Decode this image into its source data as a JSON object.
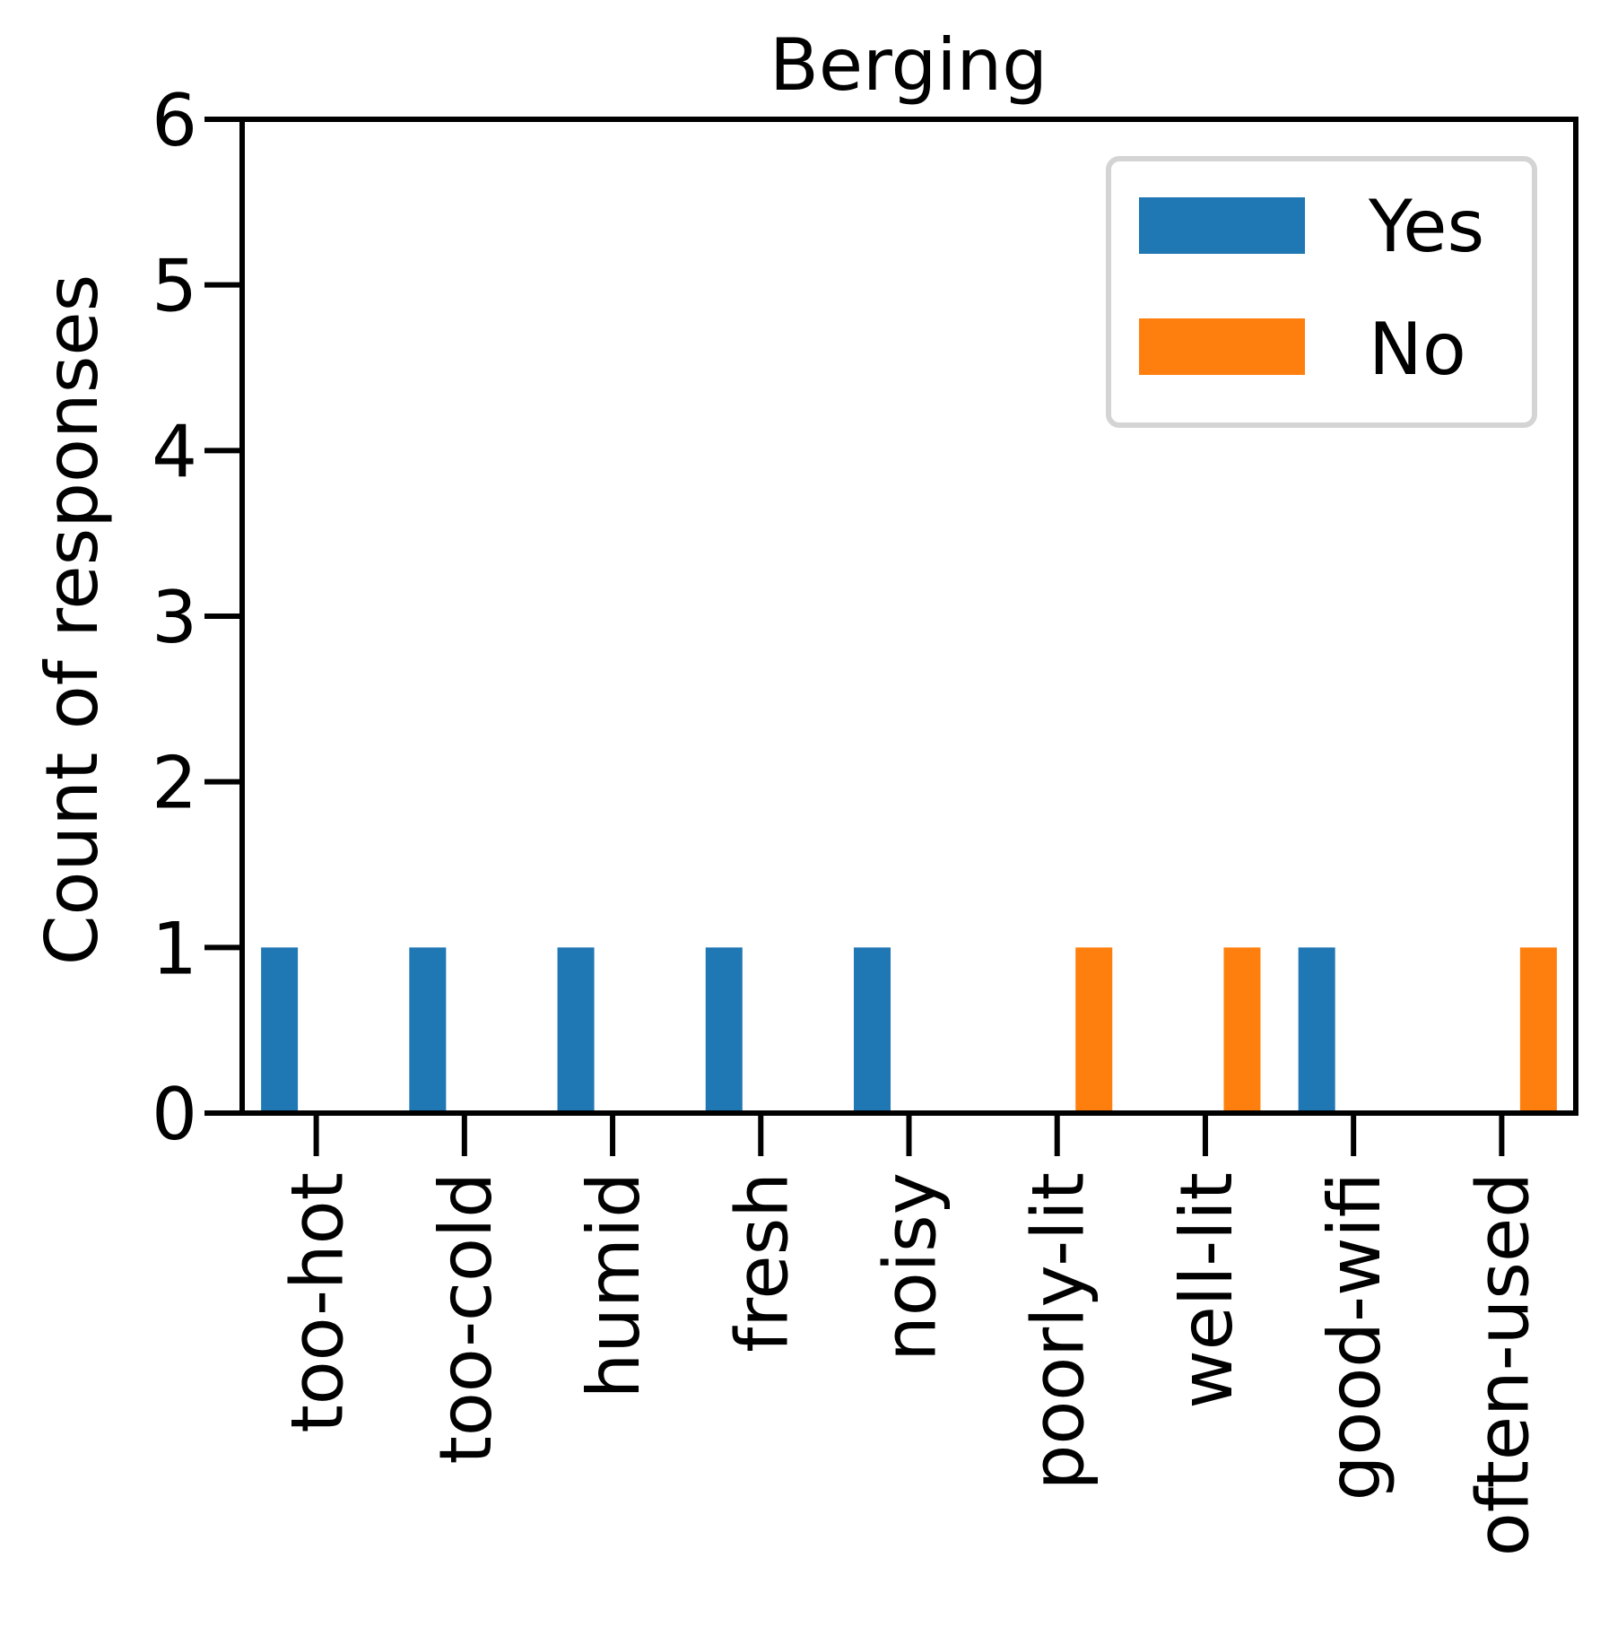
{
  "chart_data": {
    "type": "bar",
    "title": "Berging",
    "xlabel": "",
    "ylabel": "Count of responses",
    "categories": [
      "too-hot",
      "too-cold",
      "humid",
      "fresh",
      "noisy",
      "poorly-lit",
      "well-lit",
      "good-wifi",
      "often-used"
    ],
    "series": [
      {
        "name": "Yes",
        "color": "#1f77b4",
        "values": [
          1,
          1,
          1,
          1,
          1,
          0,
          0,
          1,
          0
        ]
      },
      {
        "name": "No",
        "color": "#ff7f0e",
        "values": [
          0,
          0,
          0,
          0,
          0,
          1,
          1,
          0,
          1
        ]
      }
    ],
    "ylim": [
      0,
      6
    ],
    "yticks": [
      0,
      1,
      2,
      3,
      4,
      5,
      6
    ],
    "grid": false,
    "legend": "top-right"
  }
}
